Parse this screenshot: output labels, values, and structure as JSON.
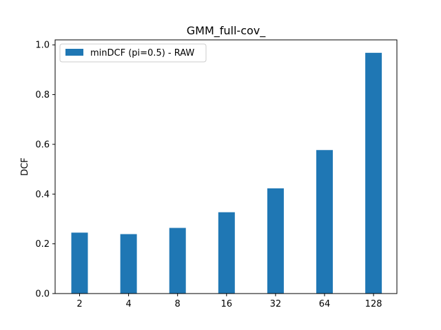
{
  "chart_data": {
    "type": "bar",
    "title": "GMM_full-cov_",
    "xlabel": "",
    "ylabel": "DCF",
    "categories": [
      "2",
      "4",
      "8",
      "16",
      "32",
      "64",
      "128"
    ],
    "series": [
      {
        "name": "minDCF (pi=0.5) - RAW",
        "values": [
          0.245,
          0.239,
          0.264,
          0.327,
          0.423,
          0.577,
          0.968
        ],
        "color": "#1f77b4"
      }
    ],
    "ylim": [
      0,
      1.02
    ],
    "yticks": [
      "0.0",
      "0.2",
      "0.4",
      "0.6",
      "0.8",
      "1.0"
    ],
    "legend": "top-left",
    "grid": false
  }
}
